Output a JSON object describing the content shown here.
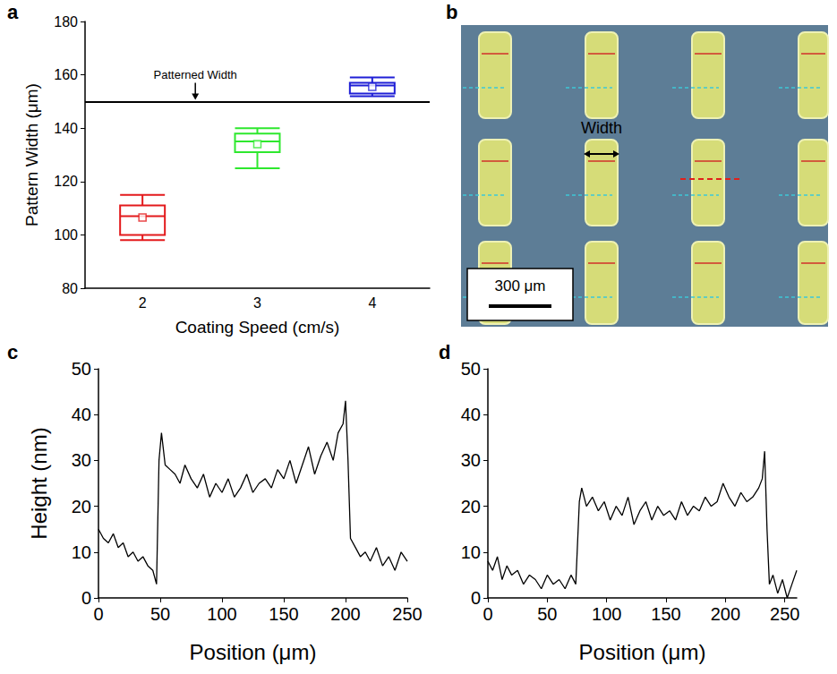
{
  "chart_data": [
    {
      "label": "a",
      "type": "boxplot",
      "categories": [
        "2",
        "3",
        "4"
      ],
      "x_label": "Coating Speed (cm/s)",
      "y_label": "Pattern Width (μm)",
      "ylim": [
        80,
        180
      ],
      "yticks": [
        80,
        100,
        120,
        140,
        160,
        180
      ],
      "boxes": [
        {
          "color": "#e31a1c",
          "min": 98,
          "q1": 100,
          "median": 107,
          "q3": 111,
          "max": 115,
          "mean": 106.5
        },
        {
          "color": "#2ee82e",
          "min": 125,
          "q1": 131,
          "median": 135,
          "q3": 138,
          "max": 140,
          "mean": 134
        },
        {
          "color": "#1f1fd6",
          "min": 152,
          "q1": 153,
          "median": 156,
          "q3": 157,
          "max": 159,
          "mean": 155.5
        }
      ],
      "reference_line": {
        "value": 150,
        "label": "Patterned Width"
      }
    },
    {
      "label": "b",
      "type": "image",
      "annotations": [
        "Width"
      ],
      "scale_bar": "300 μm"
    },
    {
      "label": "c",
      "type": "line",
      "color": "#000000",
      "x_label": "Position (μm)",
      "y_label": "Height (nm)",
      "xlim": [
        0,
        250
      ],
      "xticks": [
        0,
        50,
        100,
        150,
        200,
        250
      ],
      "ylim": [
        0,
        50
      ],
      "yticks": [
        0,
        10,
        20,
        30,
        40,
        50
      ],
      "x": [
        0,
        4,
        8,
        12,
        16,
        20,
        24,
        28,
        32,
        36,
        40,
        44,
        47,
        49,
        51,
        54,
        58,
        62,
        66,
        70,
        75,
        80,
        85,
        90,
        95,
        100,
        105,
        110,
        115,
        120,
        125,
        130,
        135,
        140,
        145,
        150,
        155,
        160,
        165,
        170,
        175,
        180,
        185,
        190,
        194,
        198,
        200,
        202,
        204,
        208,
        212,
        216,
        220,
        225,
        230,
        235,
        240,
        245,
        250
      ],
      "values": [
        15,
        13,
        12,
        14,
        11,
        12,
        9,
        10,
        8,
        9,
        7,
        6,
        3,
        30,
        36,
        29,
        28,
        27,
        25,
        29,
        26,
        24,
        27,
        22,
        25,
        23,
        26,
        22,
        24,
        27,
        23,
        25,
        26,
        24,
        28,
        26,
        30,
        25,
        29,
        33,
        27,
        31,
        34,
        30,
        36,
        38,
        43,
        30,
        13,
        11,
        9,
        10,
        8,
        11,
        7,
        9,
        6,
        10,
        8
      ]
    },
    {
      "label": "d",
      "type": "line",
      "color": "#000000",
      "x_label": "Position (μm)",
      "xlim": [
        0,
        260
      ],
      "xticks": [
        0,
        50,
        100,
        150,
        200,
        250
      ],
      "ylim": [
        0,
        50
      ],
      "yticks": [
        0,
        10,
        20,
        30,
        40,
        50
      ],
      "x": [
        0,
        4,
        8,
        12,
        16,
        20,
        25,
        30,
        35,
        40,
        45,
        50,
        55,
        60,
        65,
        70,
        74,
        77,
        79,
        83,
        88,
        93,
        98,
        103,
        108,
        113,
        118,
        123,
        128,
        133,
        138,
        143,
        148,
        153,
        158,
        163,
        168,
        173,
        178,
        183,
        188,
        193,
        198,
        203,
        208,
        213,
        218,
        223,
        228,
        231,
        233,
        235,
        237,
        240,
        244,
        248,
        252,
        256,
        260
      ],
      "values": [
        8,
        6,
        9,
        4,
        7,
        5,
        6,
        3,
        5,
        4,
        2,
        5,
        3,
        4,
        2,
        5,
        3,
        21,
        24,
        20,
        22,
        19,
        21,
        17,
        20,
        18,
        22,
        16,
        19,
        21,
        17,
        20,
        18,
        19,
        17,
        21,
        18,
        20,
        19,
        22,
        20,
        21,
        25,
        22,
        20,
        23,
        21,
        22,
        24,
        26,
        32,
        15,
        3,
        5,
        1,
        4,
        0,
        3,
        6
      ]
    }
  ]
}
